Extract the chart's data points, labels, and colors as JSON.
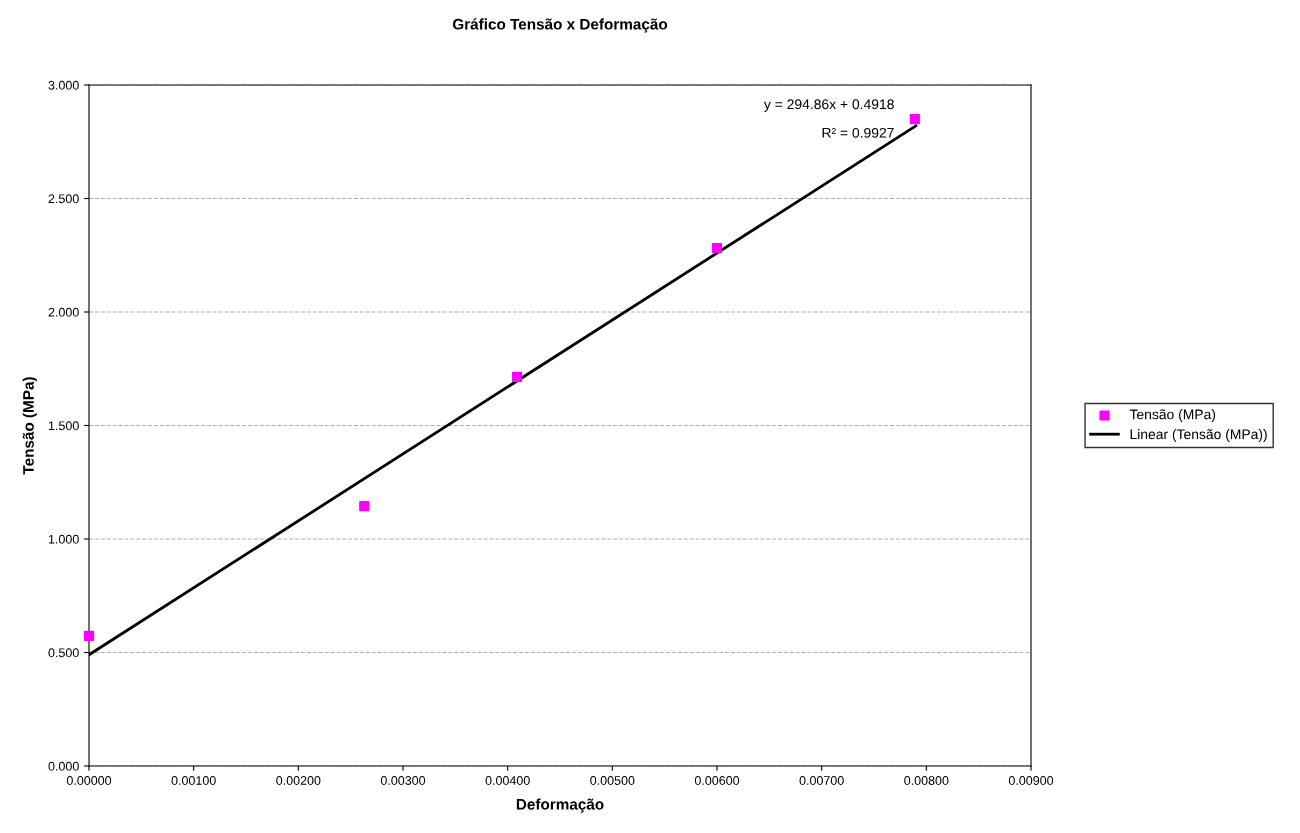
{
  "chart_data": {
    "type": "scatter",
    "title": "Gráfico Tensão x Deformação",
    "xlabel": "Deformação",
    "ylabel": "Tensão (MPa)",
    "x": [
      0.0,
      0.00263,
      0.00409,
      0.006,
      0.00789
    ],
    "series": [
      {
        "name": "Tensão (MPa)",
        "color": "#ff00ff",
        "values": [
          0.573,
          1.145,
          1.714,
          2.282,
          2.85
        ],
        "marker": "square"
      },
      {
        "name": "Linear (Tensão (MPa))",
        "type": "line",
        "color": "#000000",
        "x": [
          0.0,
          0.0079
        ],
        "values": [
          0.49,
          2.82
        ],
        "line_style": "solid",
        "marker": "none"
      }
    ],
    "xlim": [
      0,
      0.009
    ],
    "xticks": [
      {
        "value": 0,
        "label": "0.00000"
      },
      {
        "value": 0.001,
        "label": "0.00100"
      },
      {
        "value": 0.002,
        "label": "0.00200"
      },
      {
        "value": 0.003,
        "label": "0.00300"
      },
      {
        "value": 0.004,
        "label": "0.00400"
      },
      {
        "value": 0.005,
        "label": "0.00500"
      },
      {
        "value": 0.006,
        "label": "0.00600"
      },
      {
        "value": 0.007,
        "label": "0.00700"
      },
      {
        "value": 0.008,
        "label": "0.00800"
      },
      {
        "value": 0.009,
        "label": "0.00900"
      }
    ],
    "ylim": [
      0,
      3
    ],
    "yticks": [
      {
        "value": 0,
        "label": "0.000"
      },
      {
        "value": 0.5,
        "label": "0.500"
      },
      {
        "value": 1,
        "label": "1.000"
      },
      {
        "value": 1.5,
        "label": "1.500"
      },
      {
        "value": 2,
        "label": "2.000"
      },
      {
        "value": 2.5,
        "label": "2.500"
      },
      {
        "value": 3,
        "label": "3.000"
      }
    ],
    "annotations": [
      "y = 294.86x + 0.4918",
      "R² = 0.9927"
    ],
    "grid": "y",
    "legend": "right"
  }
}
